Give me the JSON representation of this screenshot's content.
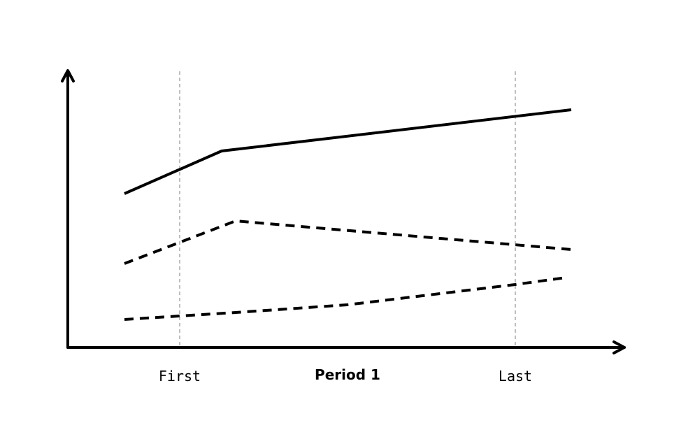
{
  "labels": {
    "first": "First",
    "middle": "Period 1",
    "last": "Last"
  }
}
